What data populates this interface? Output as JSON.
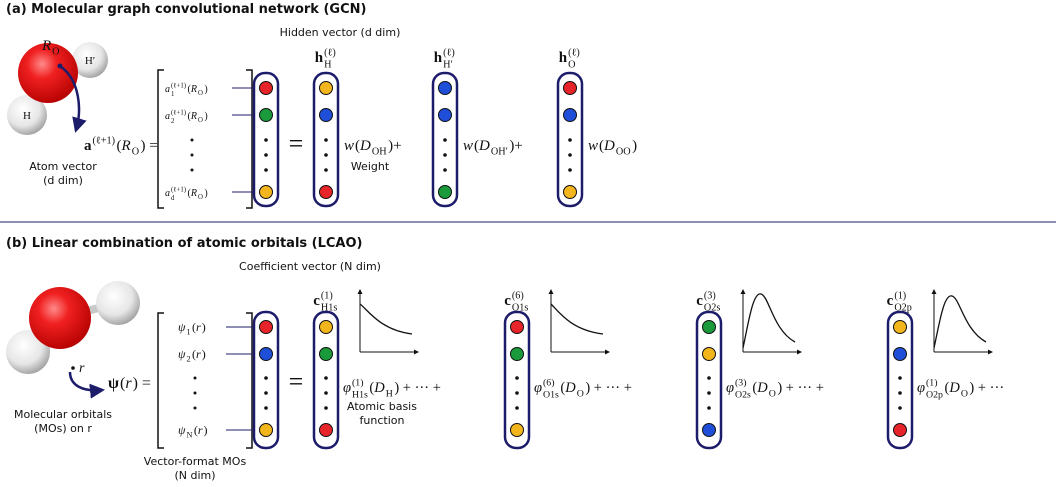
{
  "panel_a": {
    "title": "(a) Molecular graph convolutional network (GCN)",
    "atom_center": [
      "R",
      {
        "sub": "O"
      }
    ],
    "atom_h_prime": [
      {
        "rm": "H′"
      }
    ],
    "atom_h": [
      {
        "rm": "H"
      }
    ],
    "lhs": [
      {
        "bf": "a"
      },
      {
        "sup": "(ℓ+1)"
      },
      {
        "rm": "("
      },
      "R",
      {
        "sub": "O"
      },
      {
        "rm": ") ="
      }
    ],
    "atom_vector_caption": [
      "Atom vector",
      "(d dim)"
    ],
    "hidden_caption": "Hidden vector (d dim)",
    "entries": [
      [
        "a",
        {
          "sub": "1",
          "sup": "(ℓ+1)"
        },
        {
          "rm": "("
        },
        "R",
        {
          "sub": "O"
        },
        {
          "rm": ")"
        }
      ],
      [
        "a",
        {
          "sub": "2",
          "sup": "(ℓ+1)"
        },
        {
          "rm": "("
        },
        "R",
        {
          "sub": "O"
        },
        {
          "rm": ")"
        }
      ],
      [
        "a",
        {
          "sub": "d",
          "sup": "(ℓ+1)"
        },
        {
          "rm": "("
        },
        "R",
        {
          "sub": "O"
        },
        {
          "rm": ")"
        }
      ]
    ],
    "vector_colors": [
      "#e8242b",
      "#1a9a3a",
      "#f2b51c"
    ],
    "equals": "=",
    "terms": [
      {
        "label": [
          {
            "bf": "h"
          },
          {
            "sup": "(ℓ)",
            "sub": "H"
          }
        ],
        "colors": [
          "#f2b51c",
          "#1f4fd8",
          "#e8242b"
        ],
        "weight": [
          "w",
          {
            "rm": "("
          },
          "D",
          {
            "sub": "OH"
          },
          {
            "rm": ")+"
          }
        ]
      },
      {
        "label": [
          {
            "bf": "h"
          },
          {
            "sup": "(ℓ)",
            "sub": "H′"
          }
        ],
        "colors": [
          "#1f4fd8",
          "#1f4fd8",
          "#1a9a3a"
        ],
        "weight": [
          "w",
          {
            "rm": "("
          },
          "D",
          {
            "sub": "OH′"
          },
          {
            "rm": ")+"
          }
        ]
      },
      {
        "label": [
          {
            "bf": "h"
          },
          {
            "sup": "(ℓ)",
            "sub": "O"
          }
        ],
        "colors": [
          "#e8242b",
          "#1f4fd8",
          "#f2b51c"
        ],
        "weight": [
          "w",
          {
            "rm": "("
          },
          "D",
          {
            "sub": "OO"
          },
          {
            "rm": ")"
          }
        ]
      }
    ],
    "weight_caption": "Weight"
  },
  "panel_b": {
    "title": "(b) Linear combination of atomic orbitals (LCAO)",
    "coefficient_caption": "Coefficient vector (N dim)",
    "position": [
      "r"
    ],
    "lhs": [
      {
        "bf": "ψ"
      },
      {
        "rm": "("
      },
      "r",
      {
        "rm": ") ="
      }
    ],
    "mo_caption": [
      "Molecular orbitals",
      "(MOs) on r"
    ],
    "entries": [
      [
        "ψ",
        {
          "sub": "1"
        },
        {
          "rm": "("
        },
        "r",
        {
          "rm": ")"
        }
      ],
      [
        "ψ",
        {
          "sub": "2"
        },
        {
          "rm": "("
        },
        "r",
        {
          "rm": ")"
        }
      ],
      [
        "ψ",
        {
          "sub": "N"
        },
        {
          "rm": "("
        },
        "r",
        {
          "rm": ")"
        }
      ]
    ],
    "vector_colors": [
      "#e8242b",
      "#1f4fd8",
      "#f2b51c"
    ],
    "vector_caption": [
      "Vector-format MOs",
      "(N dim)"
    ],
    "equals": "=",
    "terms": [
      {
        "label": [
          {
            "bf": "c"
          },
          {
            "sup": "(1)",
            "sub": "H1s"
          }
        ],
        "colors": [
          "#f2b51c",
          "#1a9a3a",
          "#e8242b"
        ],
        "basis": [
          "φ",
          {
            "sup": "(1)",
            "sub": "H1s"
          },
          {
            "rm": "("
          },
          "D",
          {
            "sub": "H"
          },
          {
            "rm": ") + ··· +"
          }
        ]
      },
      {
        "label": [
          {
            "bf": "c"
          },
          {
            "sup": "(6)",
            "sub": "O1s"
          }
        ],
        "colors": [
          "#e8242b",
          "#1a9a3a",
          "#f2b51c"
        ],
        "basis": [
          "φ",
          {
            "sup": "(6)",
            "sub": "O1s"
          },
          {
            "rm": "("
          },
          "D",
          {
            "sub": "O"
          },
          {
            "rm": ") + ··· +"
          }
        ]
      },
      {
        "label": [
          {
            "bf": "c"
          },
          {
            "sup": "(3)",
            "sub": "O2s"
          }
        ],
        "colors": [
          "#1a9a3a",
          "#f2b51c",
          "#1f4fd8"
        ],
        "basis": [
          "φ",
          {
            "sup": "(3)",
            "sub": "O2s"
          },
          {
            "rm": "("
          },
          "D",
          {
            "sub": "O"
          },
          {
            "rm": ") + ··· +"
          }
        ]
      },
      {
        "label": [
          {
            "bf": "c"
          },
          {
            "sup": "(1)",
            "sub": "O2p"
          }
        ],
        "colors": [
          "#f2b51c",
          "#1f4fd8",
          "#e8242b"
        ],
        "basis": [
          "φ",
          {
            "sup": "(1)",
            "sub": "O2p"
          },
          {
            "rm": "("
          },
          "D",
          {
            "sub": "O"
          },
          {
            "rm": ") + ···"
          }
        ]
      }
    ],
    "basis_caption": [
      "Atomic basis",
      "function"
    ]
  }
}
